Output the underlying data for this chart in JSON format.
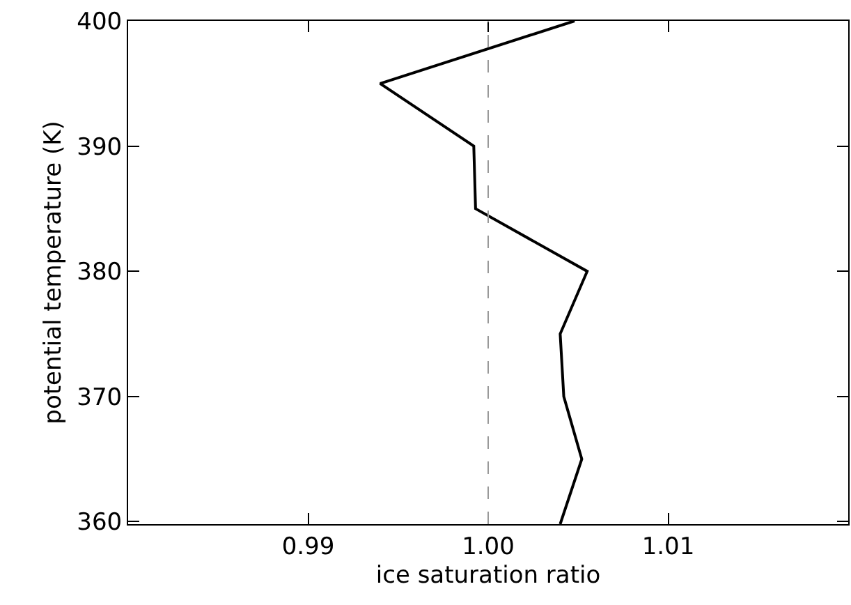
{
  "chart_data": {
    "type": "line",
    "xlabel": "ice saturation ratio",
    "ylabel": "potential temperature (K)",
    "x": [
      1.0048,
      0.994,
      0.9992,
      0.9993,
      1.0055,
      1.004,
      1.0042,
      1.0052,
      1.004
    ],
    "series": [
      {
        "color": "#000000",
        "values": [
          400,
          395,
          390,
          385,
          380,
          375,
          370,
          365,
          359.8
        ]
      }
    ],
    "xlim": [
      0.98,
      1.02
    ],
    "xticks": [
      {
        "value": 0.99,
        "label": "0.99"
      },
      {
        "value": 1.0,
        "label": "1.00"
      },
      {
        "value": 1.01,
        "label": "1.01"
      }
    ],
    "ylim": [
      359.8,
      400
    ],
    "yticks": [
      360,
      370,
      380,
      390,
      400
    ],
    "ref_lines": [
      {
        "axis": "x",
        "value": 1.0,
        "color": "#999999",
        "line_style": "dashed"
      }
    ],
    "grid": false,
    "marker": "none",
    "line_style": "solid"
  }
}
